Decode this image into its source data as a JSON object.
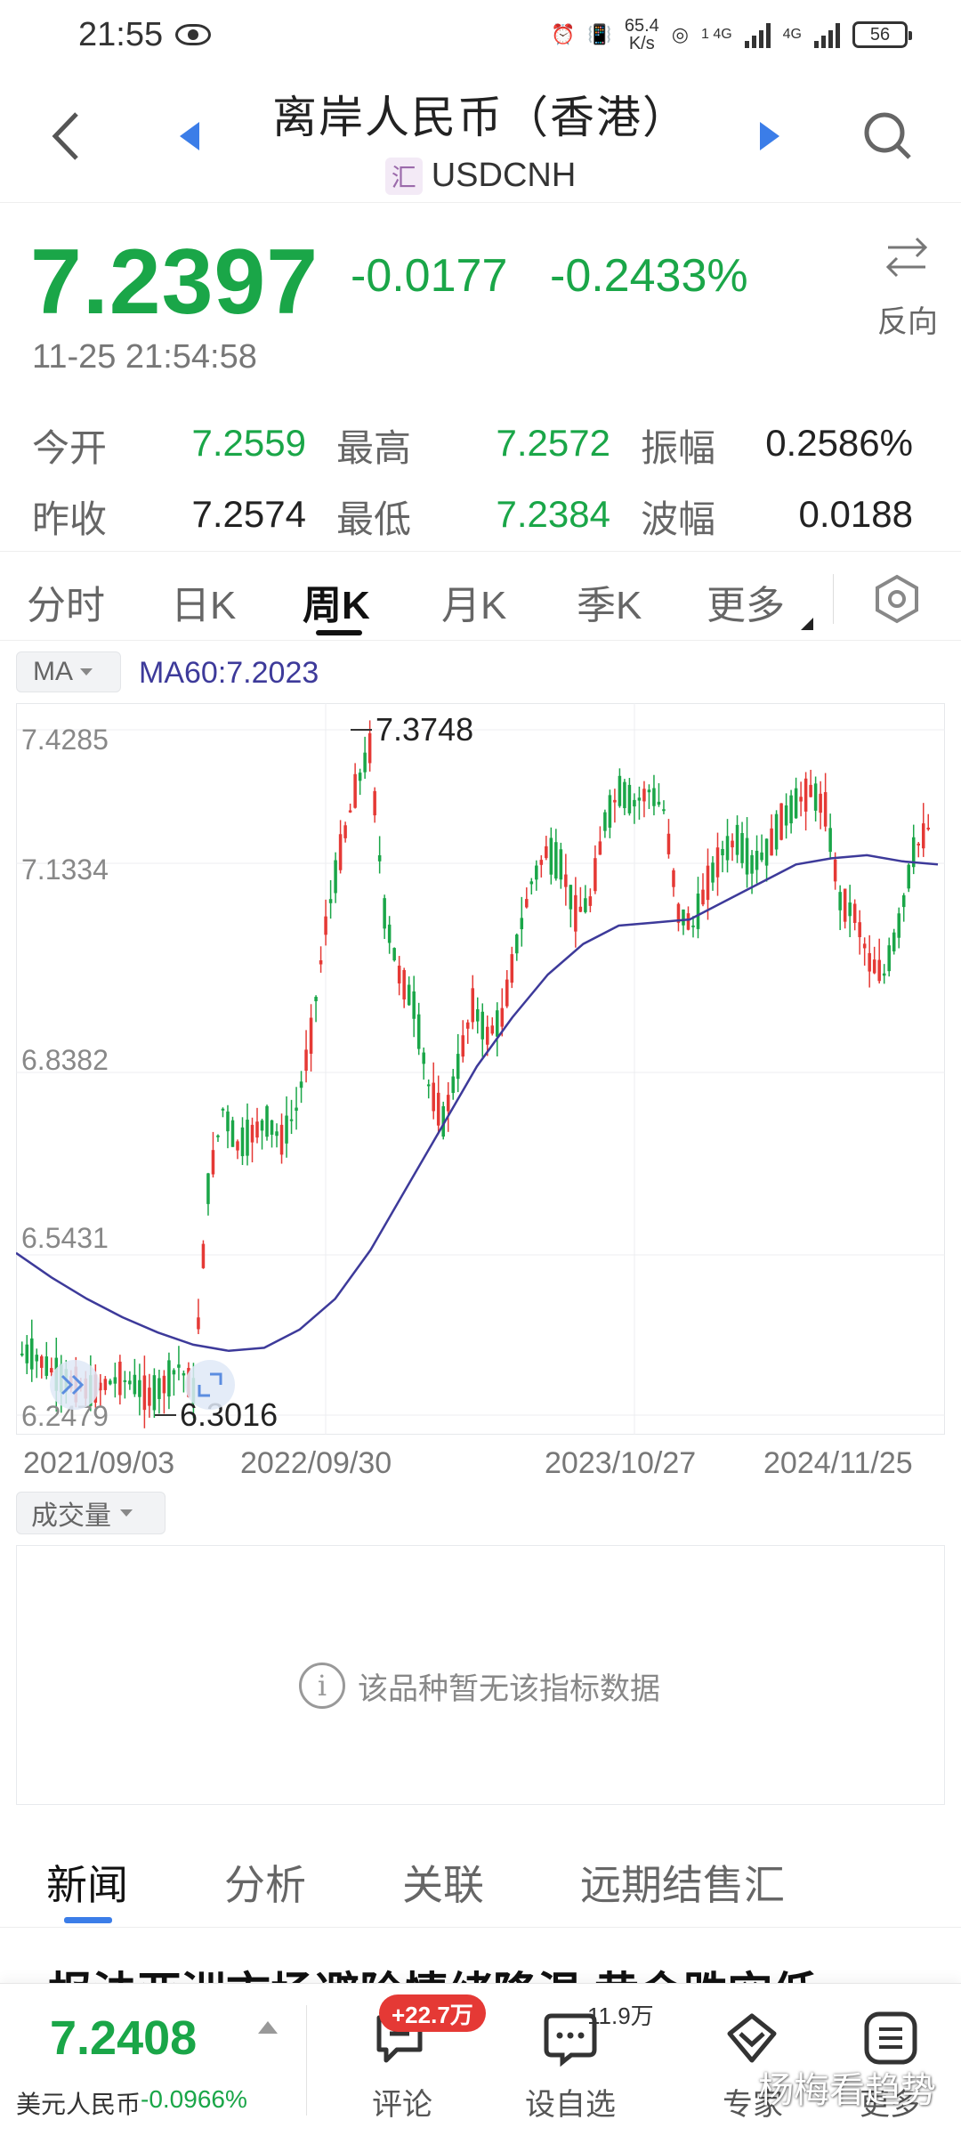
{
  "status_bar": {
    "time": "21:55",
    "speed_value": "65.4",
    "speed_unit": "K/s",
    "net1": "1 4G",
    "net2": "4G",
    "battery": "56"
  },
  "header": {
    "title": "离岸人民币（香港）",
    "fx_icon_text": "汇",
    "symbol": "USDCNH"
  },
  "quote": {
    "price": "7.2397",
    "change": "-0.0177",
    "change_pct": "-0.2433%",
    "datetime": "11-25 21:54:58",
    "reverse_label": "反向"
  },
  "stats": {
    "open_label": "今开",
    "open": "7.2559",
    "high_label": "最高",
    "high": "7.2572",
    "amplitude_label": "振幅",
    "amplitude": "0.2586%",
    "prev_close_label": "昨收",
    "prev_close": "7.2574",
    "low_label": "最低",
    "low": "7.2384",
    "range_label": "波幅",
    "range": "0.0188"
  },
  "period_tabs": [
    "分时",
    "日K",
    "周K",
    "月K",
    "季K",
    "更多"
  ],
  "active_period": "周K",
  "indicator": {
    "selector": "MA",
    "ma_text": "MA60:7.2023"
  },
  "chart_data": {
    "type": "candlestick",
    "y_ticks": [
      "7.4285",
      "7.1334",
      "6.8382",
      "6.5431",
      "6.2479"
    ],
    "x_ticks": [
      "2021/09/03",
      "2022/09/30",
      "2023/10/27",
      "2024/11/25"
    ],
    "ylim": [
      6.2479,
      7.4285
    ],
    "max_annotation": "7.3748",
    "min_annotation": "6.3016",
    "series": [
      {
        "name": "MA60",
        "values": [
          6.545,
          6.505,
          6.47,
          6.44,
          6.415,
          6.395,
          6.385,
          6.39,
          6.42,
          6.47,
          6.55,
          6.65,
          6.75,
          6.85,
          6.93,
          7.0,
          7.05,
          7.08,
          7.085,
          7.09,
          7.12,
          7.15,
          7.18,
          7.19,
          7.195,
          7.185,
          7.18
        ]
      }
    ],
    "candles_close": [
      6.38,
      6.36,
      6.34,
      6.33,
      6.32,
      6.33,
      6.34,
      6.33,
      6.31,
      6.33,
      6.36,
      6.32,
      6.65,
      6.78,
      6.72,
      6.74,
      6.76,
      6.73,
      6.78,
      6.9,
      7.08,
      7.2,
      7.3,
      7.37,
      7.1,
      7.0,
      6.95,
      6.82,
      6.76,
      6.85,
      6.95,
      6.9,
      6.93,
      7.05,
      7.15,
      7.2,
      7.18,
      7.1,
      7.12,
      7.25,
      7.3,
      7.28,
      7.3,
      7.27,
      7.1,
      7.08,
      7.15,
      7.2,
      7.22,
      7.18,
      7.2,
      7.25,
      7.28,
      7.3,
      7.27,
      7.12,
      7.1,
      7.02,
      7.0,
      7.08,
      7.2,
      7.24
    ]
  },
  "volume": {
    "selector": "成交量",
    "empty_message": "该品种暂无该指标数据"
  },
  "news_tabs": [
    "新闻",
    "分析",
    "关联",
    "远期结售汇"
  ],
  "active_news_tab": "新闻",
  "headline": "报法亚洲市场避险情绪降温 黄金跌空低",
  "bottom_bar": {
    "related_price": "7.2408",
    "related_name": "美元人民币",
    "related_pct": "-0.0966%",
    "comment_badge": "+22.7万",
    "comment_label": "评论",
    "watch_count": "11.9万",
    "watch_label": "设自选",
    "pro_label": "专家",
    "menu_label": "更多"
  },
  "watermark": "杨梅看趋势",
  "colors": {
    "up": "#e53935",
    "down": "#1aa648",
    "ma": "#3d3a9a",
    "accent": "#3b7de8"
  }
}
